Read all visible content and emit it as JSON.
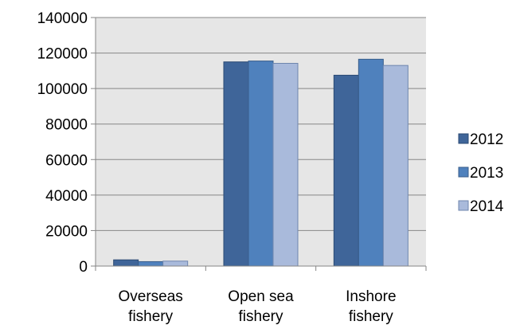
{
  "chart_data": {
    "type": "bar",
    "categories": [
      [
        "Overseas",
        "fishery"
      ],
      [
        "Open sea",
        "fishery"
      ],
      [
        "Inshore",
        "fishery"
      ]
    ],
    "series": [
      {
        "name": "2012",
        "color": "#3F6599",
        "border": "#2B4A73",
        "values": [
          3500,
          115000,
          107500
        ]
      },
      {
        "name": "2013",
        "color": "#4F81BD",
        "border": "#385D8A",
        "values": [
          2500,
          115500,
          116500
        ]
      },
      {
        "name": "2014",
        "color": "#A9BADB",
        "border": "#6F86AE",
        "values": [
          2800,
          114200,
          113000
        ]
      }
    ],
    "ylim": [
      0,
      140000
    ],
    "yticks": [
      "0",
      "20000",
      "40000",
      "60000",
      "80000",
      "100000",
      "120000",
      "140000"
    ],
    "grid": true,
    "legend_position": "right",
    "plot_background": "#E6E6E6",
    "gridline_color": "#878787"
  }
}
